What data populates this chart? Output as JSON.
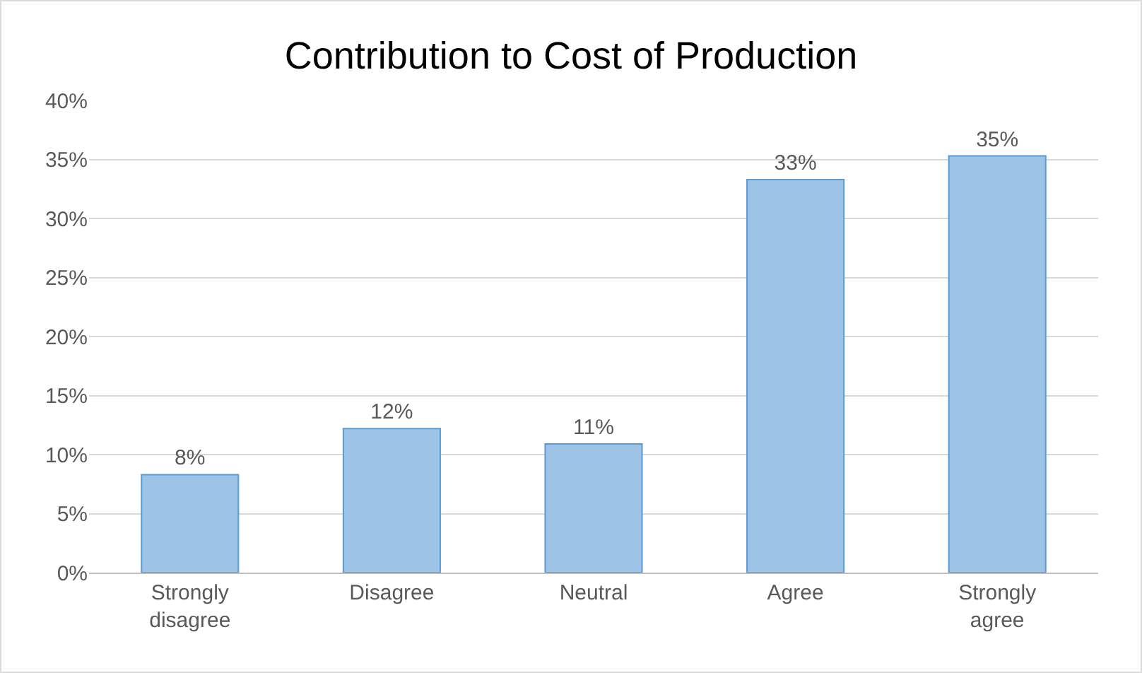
{
  "chart_data": {
    "type": "bar",
    "title": "Contribution to Cost of Production",
    "categories": [
      "Strongly disagree",
      "Disagree",
      "Neutral",
      "Agree",
      "Strongly agree"
    ],
    "values": [
      8.3,
      12.2,
      10.9,
      33.3,
      35.3
    ],
    "value_labels": [
      "8%",
      "12%",
      "11%",
      "33%",
      "35%"
    ],
    "color": "#9dc3e6",
    "ylim": [
      0,
      40
    ],
    "yticks": [
      {
        "value": 0,
        "label": "0%"
      },
      {
        "value": 5,
        "label": "5%"
      },
      {
        "value": 10,
        "label": "10%"
      },
      {
        "value": 15,
        "label": "15%"
      },
      {
        "value": 20,
        "label": "20%"
      },
      {
        "value": 25,
        "label": "25%"
      },
      {
        "value": 30,
        "label": "30%"
      },
      {
        "value": 35,
        "label": "35%"
      },
      {
        "value": 40,
        "label": "40%"
      }
    ],
    "grid": "y"
  }
}
